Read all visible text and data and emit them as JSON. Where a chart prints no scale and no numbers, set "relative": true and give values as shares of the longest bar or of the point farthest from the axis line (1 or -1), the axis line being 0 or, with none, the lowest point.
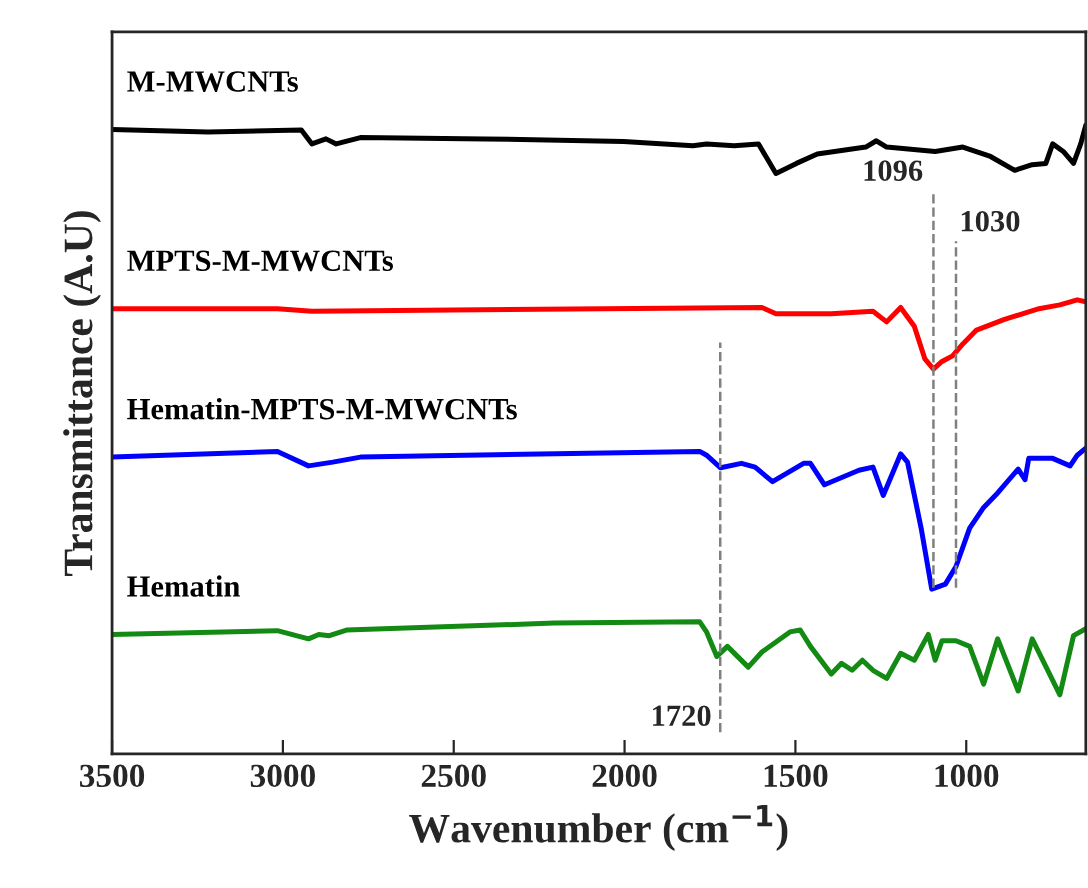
{
  "chart_data": {
    "type": "line",
    "relative": true,
    "xlabel": "Wavenumber (cm$^{−1}$)",
    "ylabel": "Transmittance (A.U)",
    "xlim": [
      3500,
      650
    ],
    "xticks": [
      3500,
      3000,
      2500,
      2000,
      1500,
      1000
    ],
    "grid": false,
    "legend": false,
    "marker": "none",
    "line_style": "solid",
    "series": [
      {
        "name": "M-MWCNTs",
        "color": "#000000",
        "x": [
          3500,
          3219,
          2946,
          2915,
          2874,
          2844,
          2773,
          2408,
          2003,
          1800,
          1760,
          1679,
          1608,
          1557,
          1497,
          1436,
          1294,
          1263,
          1233,
          1091,
          1010,
          929,
          858,
          807,
          767,
          747,
          716,
          686,
          665,
          650
        ],
        "values": [
          0.993,
          0.989,
          0.992,
          0.97,
          0.978,
          0.97,
          0.98,
          0.978,
          0.974,
          0.967,
          0.97,
          0.967,
          0.97,
          0.923,
          0.939,
          0.954,
          0.965,
          0.975,
          0.965,
          0.958,
          0.965,
          0.95,
          0.928,
          0.937,
          0.939,
          0.97,
          0.958,
          0.939,
          0.97,
          1.0
        ]
      },
      {
        "name": "MPTS-M-MWCNTs",
        "color": "#ff0000",
        "x": [
          3500,
          3016,
          2915,
          1598,
          1557,
          1395,
          1273,
          1233,
          1192,
          1152,
          1121,
          1096,
          1071,
          1040,
          1010,
          970,
          888,
          787,
          726,
          675,
          650
        ],
        "values": [
          0.708,
          0.708,
          0.704,
          0.71,
          0.7,
          0.7,
          0.704,
          0.687,
          0.71,
          0.68,
          0.628,
          0.612,
          0.624,
          0.633,
          0.652,
          0.674,
          0.691,
          0.708,
          0.714,
          0.722,
          0.719
        ]
      },
      {
        "name": "Hematin-MPTS-M-MWCNTs",
        "color": "#0000ff",
        "x": [
          3500,
          3016,
          2925,
          2854,
          2773,
          1780,
          1760,
          1719,
          1658,
          1618,
          1567,
          1476,
          1456,
          1415,
          1314,
          1273,
          1243,
          1192,
          1172,
          1132,
          1101,
          1061,
          1030,
          990,
          949,
          908,
          848,
          828,
          817,
          747,
          696,
          675,
          650
        ],
        "values": [
          0.472,
          0.481,
          0.458,
          0.464,
          0.472,
          0.481,
          0.475,
          0.455,
          0.462,
          0.456,
          0.433,
          0.462,
          0.462,
          0.428,
          0.451,
          0.456,
          0.411,
          0.477,
          0.464,
          0.359,
          0.262,
          0.27,
          0.298,
          0.359,
          0.392,
          0.415,
          0.453,
          0.436,
          0.47,
          0.47,
          0.458,
          0.475,
          0.486
        ]
      },
      {
        "name": "Hematin",
        "color": "#138a13",
        "x": [
          3500,
          3016,
          2925,
          2895,
          2864,
          2814,
          2206,
          1780,
          1760,
          1730,
          1699,
          1638,
          1598,
          1516,
          1486,
          1456,
          1395,
          1365,
          1334,
          1304,
          1273,
          1233,
          1192,
          1152,
          1111,
          1091,
          1071,
          1030,
          990,
          949,
          908,
          848,
          807,
          726,
          686,
          650
        ],
        "values": [
          0.19,
          0.196,
          0.183,
          0.19,
          0.188,
          0.197,
          0.208,
          0.21,
          0.194,
          0.155,
          0.171,
          0.138,
          0.162,
          0.194,
          0.197,
          0.171,
          0.127,
          0.144,
          0.133,
          0.149,
          0.133,
          0.12,
          0.16,
          0.149,
          0.19,
          0.149,
          0.18,
          0.18,
          0.171,
          0.111,
          0.183,
          0.1,
          0.183,
          0.094,
          0.188,
          0.199
        ]
      }
    ],
    "ref_lines": [
      {
        "axis": "x",
        "value": 1720,
        "label": "1720",
        "color": "#808080",
        "line_style": "dashed"
      },
      {
        "axis": "x",
        "value": 1096,
        "label": "1096",
        "color": "#808080",
        "line_style": "dashed"
      },
      {
        "axis": "x",
        "value": 1030,
        "label": "1030",
        "color": "#808080",
        "line_style": "dashed"
      }
    ]
  }
}
